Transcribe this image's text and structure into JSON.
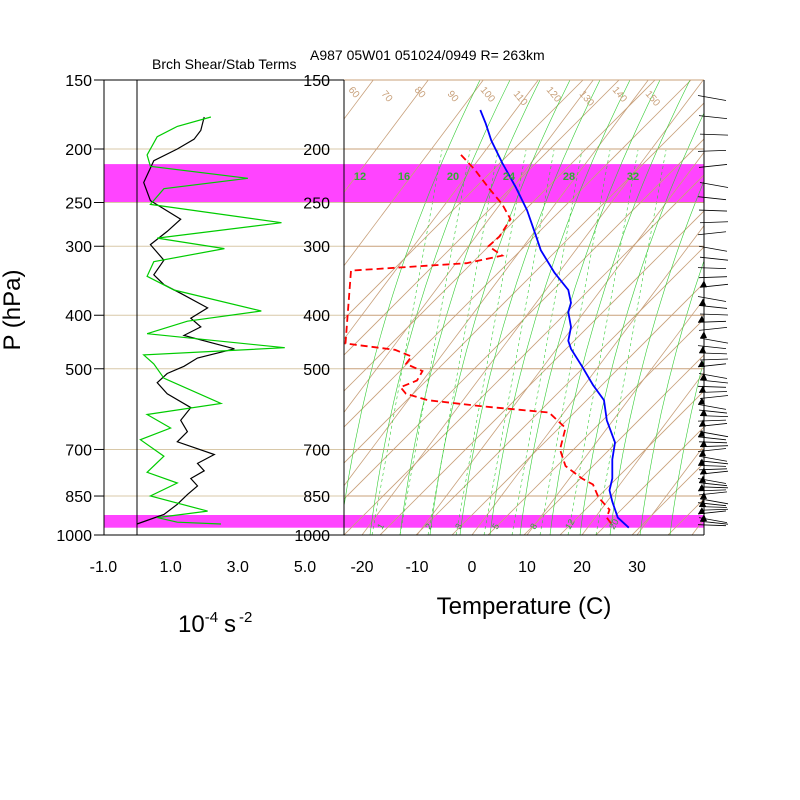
{
  "chart_data": [
    {
      "type": "line",
      "title": "Brch Shear/Stab Terms",
      "ylabel": "P (hPa)",
      "xlabel": "10^-4 s^-2",
      "xlabel_main": "10",
      "xlabel_exp1": "-4",
      "xlabel_unit": "s",
      "xlabel_exp2": "-2",
      "x_ticks": [
        "-1.0",
        "1.0",
        "3.0",
        "5.0"
      ],
      "y_ticks": [
        "150",
        "200",
        "250",
        "300",
        "400",
        "500",
        "700",
        "850",
        "1000"
      ],
      "ylim": [
        1000,
        150
      ],
      "series": [
        {
          "color": "#000000",
          "points": [
            [
              2.0,
              175
            ],
            [
              1.9,
              185
            ],
            [
              1.7,
              192
            ],
            [
              1.2,
              200
            ],
            [
              0.5,
              210
            ],
            [
              0.2,
              230
            ],
            [
              0.4,
              248
            ],
            [
              1.3,
              268
            ],
            [
              0.9,
              282
            ],
            [
              0.4,
              298
            ],
            [
              0.8,
              318
            ],
            [
              0.5,
              338
            ],
            [
              0.8,
              352
            ],
            [
              1.3,
              365
            ],
            [
              2.1,
              388
            ],
            [
              1.6,
              405
            ],
            [
              1.9,
              420
            ],
            [
              1.4,
              435
            ],
            [
              2.9,
              460
            ],
            [
              1.8,
              478
            ],
            [
              1.4,
              495
            ],
            [
              0.9,
              510
            ],
            [
              0.6,
              530
            ],
            [
              0.9,
              555
            ],
            [
              1.6,
              588
            ],
            [
              1.3,
              620
            ],
            [
              1.5,
              650
            ],
            [
              1.2,
              678
            ],
            [
              2.3,
              715
            ],
            [
              1.8,
              742
            ],
            [
              2.0,
              765
            ],
            [
              1.6,
              790
            ],
            [
              1.8,
              815
            ],
            [
              1.5,
              845
            ],
            [
              1.2,
              880
            ],
            [
              0.8,
              918
            ],
            [
              0.0,
              955
            ]
          ]
        },
        {
          "color": "#00cc00",
          "points": [
            [
              2.2,
              175
            ],
            [
              1.2,
              182
            ],
            [
              0.6,
              190
            ],
            [
              0.3,
              205
            ],
            [
              0.4,
              215
            ],
            [
              3.3,
              226
            ],
            [
              0.8,
              236
            ],
            [
              0.4,
              252
            ],
            [
              4.3,
              272
            ],
            [
              0.6,
              290
            ],
            [
              2.6,
              303
            ],
            [
              0.5,
              320
            ],
            [
              0.3,
              340
            ],
            [
              1.1,
              360
            ],
            [
              3.7,
              393
            ],
            [
              1.5,
              410
            ],
            [
              0.3,
              432
            ],
            [
              4.4,
              458
            ],
            [
              0.2,
              472
            ],
            [
              0.5,
              490
            ],
            [
              0.8,
              520
            ],
            [
              2.5,
              578
            ],
            [
              0.3,
              605
            ],
            [
              1.0,
              640
            ],
            [
              0.1,
              672
            ],
            [
              0.8,
              720
            ],
            [
              0.3,
              770
            ],
            [
              1.2,
              805
            ],
            [
              0.4,
              850
            ],
            [
              2.1,
              905
            ],
            [
              0.6,
              930
            ],
            [
              1.2,
              948
            ],
            [
              2.5,
              955
            ]
          ]
        }
      ]
    },
    {
      "type": "line",
      "title": "A987 05W01 051024/0949 R= 263km",
      "xlabel": "Temperature (C)",
      "x_ticks": [
        "-20",
        "-10",
        "0",
        "10",
        "20",
        "30"
      ],
      "y_ticks": [
        "150",
        "200",
        "250",
        "300",
        "400",
        "500",
        "700",
        "850",
        "1000"
      ],
      "xlim": [
        -23.5,
        42
      ],
      "ylim": [
        1000,
        150
      ],
      "highlight_bands_hPa": [
        [
          213,
          250
        ],
        [
          920,
          970
        ]
      ],
      "highlight_color": "#ff44ff",
      "mixing_ratio_labels": [
        "12",
        "16",
        "20",
        "24",
        "28",
        "32"
      ],
      "mixing_ratio_labels_bottom": [
        "1",
        "2",
        "3",
        "5",
        "8",
        "12",
        "20"
      ],
      "isotherm_labels": [
        "60",
        "70",
        "80",
        "90",
        "100",
        "110",
        "120",
        "130",
        "140",
        "150"
      ],
      "series": [
        {
          "name": "temperature",
          "color": "#0000ff",
          "dash": "solid",
          "points": [
            [
              1.5,
              170
            ],
            [
              2.5,
              180
            ],
            [
              3.5,
              193
            ],
            [
              5.5,
              212
            ],
            [
              8,
              235
            ],
            [
              10,
              258
            ],
            [
              11.5,
              285
            ],
            [
              12.5,
              305
            ],
            [
              15,
              335
            ],
            [
              17.5,
              360
            ],
            [
              18,
              380
            ],
            [
              17.5,
              395
            ],
            [
              18,
              420
            ],
            [
              17.5,
              445
            ],
            [
              18,
              460
            ],
            [
              20,
              495
            ],
            [
              22,
              535
            ],
            [
              24,
              570
            ],
            [
              24.5,
              620
            ],
            [
              26,
              680
            ],
            [
              25.5,
              730
            ],
            [
              25.5,
              790
            ],
            [
              25,
              830
            ],
            [
              25.5,
              870
            ],
            [
              26.5,
              930
            ],
            [
              28.5,
              970
            ]
          ]
        },
        {
          "name": "dewpoint",
          "color": "#ff0000",
          "dash": "dashed",
          "points": [
            [
              -2,
              205
            ],
            [
              0.5,
              218
            ],
            [
              3,
              235
            ],
            [
              5.5,
              252
            ],
            [
              7,
              268
            ],
            [
              5,
              288
            ],
            [
              3,
              300
            ],
            [
              5.5,
              312
            ],
            [
              -1,
              322
            ],
            [
              -22,
              332
            ],
            [
              -23,
              450
            ],
            [
              -14,
              462
            ],
            [
              -11,
              475
            ],
            [
              -12,
              490
            ],
            [
              -9,
              505
            ],
            [
              -10,
              525
            ],
            [
              -13,
              540
            ],
            [
              -12,
              555
            ],
            [
              -8,
              570
            ],
            [
              2,
              585
            ],
            [
              14,
              600
            ],
            [
              17,
              640
            ],
            [
              16,
              700
            ],
            [
              17,
              750
            ],
            [
              20,
              790
            ],
            [
              22,
              810
            ],
            [
              23,
              855
            ],
            [
              25,
              900
            ],
            [
              24.5,
              930
            ],
            [
              25.5,
              960
            ]
          ]
        }
      ]
    }
  ]
}
